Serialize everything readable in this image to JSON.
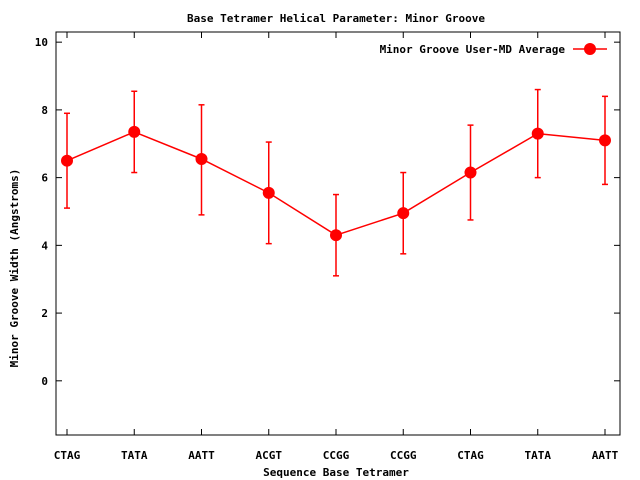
{
  "chart_data": {
    "type": "line",
    "title": "Base Tetramer Helical Parameter: Minor Groove",
    "xlabel": "Sequence Base Tetramer",
    "ylabel": "Minor Groove Width (Angstroms)",
    "categories": [
      "CTAG",
      "TATA",
      "AATT",
      "ACGT",
      "CCGG",
      "CCGG",
      "CTAG",
      "TATA",
      "AATT"
    ],
    "ylim": [
      -1.6,
      10.3
    ],
    "yticks": [
      0,
      2,
      4,
      6,
      8,
      10
    ],
    "grid": false,
    "legend_position": "top-right",
    "series": [
      {
        "name": "Minor Groove User-MD Average",
        "color": "#ff0000",
        "values": [
          6.5,
          7.35,
          6.55,
          5.55,
          4.3,
          4.95,
          6.15,
          7.3,
          7.1
        ],
        "err_low": [
          5.1,
          6.15,
          4.9,
          4.05,
          3.1,
          3.75,
          4.75,
          6.0,
          5.8
        ],
        "err_high": [
          7.9,
          8.55,
          8.15,
          7.05,
          5.5,
          6.15,
          7.55,
          8.6,
          8.4
        ]
      }
    ]
  }
}
